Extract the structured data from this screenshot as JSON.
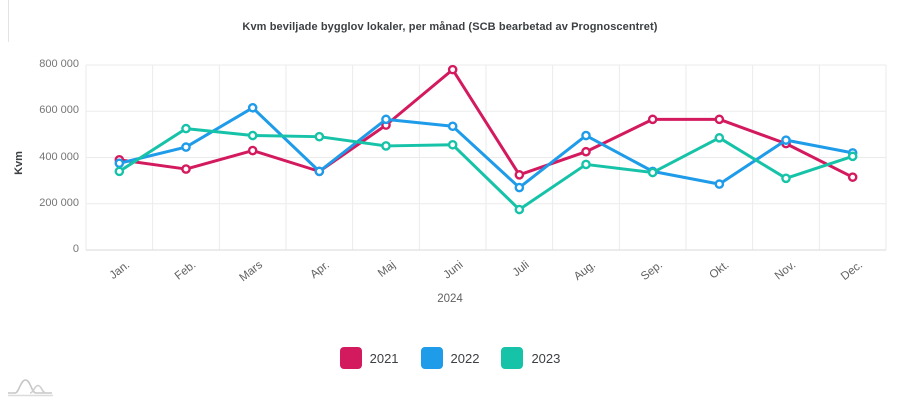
{
  "chart_data": {
    "type": "line",
    "title": "Kvm beviljade bygglov lokaler, per månad (SCB bearbetad av Prognoscentret)",
    "xlabel": "2024",
    "ylabel": "Kvm",
    "categories": [
      "Jan.",
      "Feb.",
      "Mars",
      "Apr.",
      "Maj",
      "Juni",
      "Juli",
      "Aug.",
      "Sep.",
      "Okt.",
      "Nov.",
      "Dec."
    ],
    "y_ticks": [
      "800 000",
      "600 000",
      "400 000",
      "200 000",
      "0"
    ],
    "ylim": [
      0,
      800000
    ],
    "grid": true,
    "legend_position": "bottom",
    "marker": "open-circle",
    "series": [
      {
        "name": "2021",
        "color": "#d41a5e",
        "values": [
          390000,
          350000,
          430000,
          340000,
          540000,
          780000,
          325000,
          425000,
          565000,
          565000,
          460000,
          315000
        ]
      },
      {
        "name": "2022",
        "color": "#1e9be9",
        "values": [
          375000,
          445000,
          615000,
          340000,
          565000,
          535000,
          270000,
          495000,
          340000,
          285000,
          475000,
          420000
        ]
      },
      {
        "name": "2023",
        "color": "#17c3a8",
        "values": [
          340000,
          525000,
          495000,
          490000,
          450000,
          455000,
          175000,
          370000,
          335000,
          485000,
          310000,
          405000
        ]
      }
    ]
  },
  "colors": {
    "grid": "#ebebeb",
    "axis_line": "#d9d9d9",
    "tick_text": "#757575",
    "title_text": "#3c4043",
    "watermark": "#c7c7c7"
  }
}
